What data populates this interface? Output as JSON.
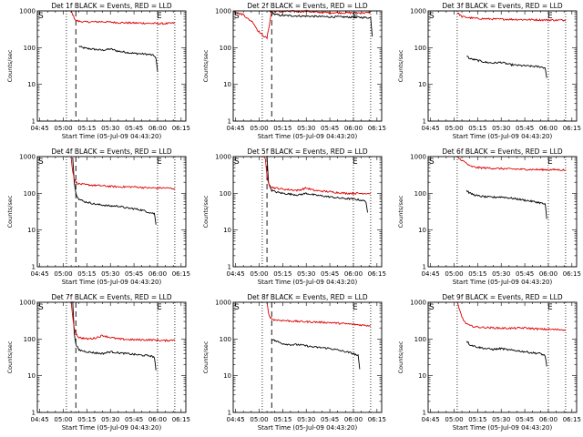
{
  "common": {
    "xlabel": "Start Time (05-Jul-09 04:43:20)",
    "ylabel": "Counts/sec",
    "xticks": [
      "04:45",
      "05:00",
      "05:15",
      "05:30",
      "05:45",
      "06:00",
      "06:15"
    ],
    "yticks": [
      "1",
      "10",
      "100",
      "1000"
    ],
    "marker_s": "S",
    "marker_e": "E",
    "colors": {
      "events": "#000000",
      "lld": "#dd0000"
    }
  },
  "chart_data": [
    {
      "type": "line",
      "title": "Det 1f BLACK = Events, RED = LLD",
      "x_unit": "minutes from 04:45",
      "x_range": [
        -1.5,
        93
      ],
      "y_scale": "log",
      "ylim": [
        1,
        1000
      ],
      "dotted_x": [
        17,
        75,
        86
      ],
      "dashed_x": [
        23
      ],
      "series": [
        {
          "name": "Events",
          "x": [
            25,
            27,
            30,
            35,
            40,
            45,
            50,
            55,
            60,
            65,
            70,
            73,
            74,
            75
          ],
          "y": [
            110,
            100,
            95,
            90,
            85,
            92,
            80,
            75,
            70,
            68,
            65,
            60,
            50,
            22
          ]
        },
        {
          "name": "LLD",
          "x": [
            20,
            21,
            22,
            23,
            25,
            30,
            40,
            50,
            60,
            70,
            80,
            86
          ],
          "y": [
            1000,
            800,
            650,
            550,
            520,
            500,
            510,
            480,
            470,
            460,
            450,
            470
          ]
        }
      ]
    },
    {
      "type": "line",
      "title": "Det 2f BLACK = Events, RED = LLD",
      "x_unit": "minutes from 04:45",
      "x_range": [
        -1.5,
        93
      ],
      "y_scale": "log",
      "ylim": [
        1,
        1000
      ],
      "dotted_x": [
        17,
        75,
        86
      ],
      "dashed_x": [
        23
      ],
      "series": [
        {
          "name": "Events",
          "x": [
            21,
            23,
            25,
            30,
            35,
            40,
            45,
            50,
            55,
            60,
            65,
            70,
            75,
            80,
            86,
            87
          ],
          "y": [
            1000,
            950,
            800,
            750,
            740,
            730,
            720,
            710,
            700,
            690,
            690,
            680,
            680,
            670,
            650,
            200
          ]
        },
        {
          "name": "LLD",
          "x": [
            -1,
            2,
            5,
            8,
            11,
            14,
            17,
            20,
            23,
            28,
            35,
            40,
            45,
            50,
            60,
            70,
            80,
            86
          ],
          "y": [
            1000,
            850,
            800,
            600,
            500,
            300,
            220,
            180,
            1000,
            950,
            980,
            950,
            1000,
            920,
            900,
            890,
            880,
            900
          ]
        }
      ]
    },
    {
      "type": "line",
      "title": "Det 3f BLACK = Events, RED = LLD",
      "x_unit": "minutes from 04:45",
      "x_range": [
        -1.5,
        93
      ],
      "y_scale": "log",
      "ylim": [
        1,
        1000
      ],
      "dotted_x": [
        17,
        75,
        86
      ],
      "dashed_x": [],
      "series": [
        {
          "name": "Events",
          "x": [
            23,
            25,
            30,
            35,
            40,
            45,
            50,
            55,
            60,
            65,
            70,
            73,
            74
          ],
          "y": [
            60,
            50,
            45,
            40,
            38,
            40,
            35,
            33,
            32,
            31,
            30,
            28,
            15
          ]
        },
        {
          "name": "LLD",
          "x": [
            17,
            20,
            25,
            30,
            40,
            50,
            60,
            70,
            80,
            86
          ],
          "y": [
            900,
            700,
            650,
            620,
            600,
            590,
            580,
            570,
            560,
            560
          ]
        }
      ]
    },
    {
      "type": "line",
      "title": "Det 4f BLACK = Events, RED = LLD",
      "x_unit": "minutes from 04:45",
      "x_range": [
        -1.5,
        93
      ],
      "y_scale": "log",
      "ylim": [
        1,
        1000
      ],
      "dotted_x": [
        17,
        75,
        86
      ],
      "dashed_x": [
        23
      ],
      "series": [
        {
          "name": "Events",
          "x": [
            21,
            22,
            23,
            25,
            28,
            32,
            36,
            40,
            45,
            50,
            55,
            60,
            65,
            70,
            73,
            74
          ],
          "y": [
            1000,
            200,
            100,
            70,
            60,
            55,
            50,
            48,
            45,
            45,
            40,
            38,
            35,
            30,
            28,
            14
          ]
        },
        {
          "name": "LLD",
          "x": [
            20,
            21,
            22,
            23,
            25,
            30,
            40,
            50,
            60,
            70,
            80,
            86
          ],
          "y": [
            1000,
            400,
            250,
            200,
            180,
            170,
            160,
            150,
            150,
            140,
            140,
            135
          ]
        }
      ]
    },
    {
      "type": "line",
      "title": "Det 5f BLACK = Events, RED = LLD",
      "x_unit": "minutes from 04:45",
      "x_range": [
        -1.5,
        93
      ],
      "y_scale": "log",
      "ylim": [
        1,
        1000
      ],
      "dotted_x": [
        17,
        75,
        86
      ],
      "dashed_x": [
        20
      ],
      "series": [
        {
          "name": "Events",
          "x": [
            20,
            21,
            23,
            25,
            30,
            35,
            40,
            45,
            50,
            55,
            60,
            65,
            70,
            75,
            80,
            83,
            84
          ],
          "y": [
            1000,
            200,
            120,
            110,
            100,
            95,
            90,
            100,
            90,
            85,
            80,
            75,
            72,
            70,
            65,
            60,
            30
          ]
        },
        {
          "name": "LLD",
          "x": [
            18,
            19,
            20,
            21,
            22,
            25,
            30,
            40,
            45,
            50,
            60,
            70,
            80,
            86
          ],
          "y": [
            1000,
            800,
            300,
            200,
            150,
            140,
            130,
            120,
            140,
            120,
            110,
            100,
            100,
            100
          ]
        }
      ]
    },
    {
      "type": "line",
      "title": "Det 6f BLACK = Events, RED = LLD",
      "x_unit": "minutes from 04:45",
      "x_range": [
        -1.5,
        93
      ],
      "y_scale": "log",
      "ylim": [
        1,
        1000
      ],
      "dotted_x": [
        17,
        75,
        86
      ],
      "dashed_x": [],
      "series": [
        {
          "name": "Events",
          "x": [
            23,
            25,
            30,
            35,
            40,
            45,
            50,
            55,
            60,
            65,
            70,
            73,
            74
          ],
          "y": [
            120,
            100,
            85,
            80,
            78,
            80,
            75,
            70,
            65,
            60,
            55,
            50,
            20
          ]
        },
        {
          "name": "LLD",
          "x": [
            17,
            18,
            20,
            23,
            25,
            30,
            40,
            50,
            60,
            70,
            80,
            86
          ],
          "y": [
            1000,
            900,
            800,
            650,
            550,
            500,
            480,
            460,
            450,
            440,
            440,
            430
          ]
        }
      ]
    },
    {
      "type": "line",
      "title": "Det 7f BLACK = Events, RED = LLD",
      "x_unit": "minutes from 04:45",
      "x_range": [
        -1.5,
        93
      ],
      "y_scale": "log",
      "ylim": [
        1,
        1000
      ],
      "dotted_x": [
        17,
        75,
        86
      ],
      "dashed_x": [
        23
      ],
      "series": [
        {
          "name": "Events",
          "x": [
            21,
            22,
            23,
            25,
            30,
            35,
            40,
            45,
            50,
            55,
            60,
            65,
            70,
            73,
            74
          ],
          "y": [
            1000,
            150,
            70,
            50,
            45,
            42,
            40,
            45,
            42,
            40,
            38,
            36,
            35,
            32,
            14
          ]
        },
        {
          "name": "LLD",
          "x": [
            20,
            21,
            22,
            23,
            25,
            30,
            35,
            40,
            45,
            50,
            60,
            70,
            80,
            86
          ],
          "y": [
            1000,
            400,
            200,
            140,
            110,
            100,
            105,
            125,
            110,
            100,
            95,
            95,
            90,
            95
          ]
        }
      ]
    },
    {
      "type": "line",
      "title": "Det 8f BLACK = Events, RED = LLD",
      "x_unit": "minutes from 04:45",
      "x_range": [
        -1.5,
        93
      ],
      "y_scale": "log",
      "ylim": [
        1,
        1000
      ],
      "dotted_x": [
        17,
        75,
        86
      ],
      "dashed_x": [
        23
      ],
      "series": [
        {
          "name": "Events",
          "x": [
            23,
            25,
            30,
            35,
            40,
            45,
            50,
            55,
            60,
            65,
            70,
            75,
            78,
            79
          ],
          "y": [
            100,
            90,
            75,
            70,
            70,
            65,
            60,
            58,
            55,
            50,
            45,
            40,
            35,
            15
          ]
        },
        {
          "name": "LLD",
          "x": [
            20,
            21,
            22,
            23,
            25,
            30,
            40,
            50,
            60,
            70,
            80,
            86
          ],
          "y": [
            1000,
            500,
            400,
            350,
            330,
            320,
            300,
            290,
            280,
            260,
            240,
            230
          ]
        }
      ]
    },
    {
      "type": "line",
      "title": "Det 9f BLACK = Events, RED = LLD",
      "x_unit": "minutes from 04:45",
      "x_range": [
        -1.5,
        93
      ],
      "y_scale": "log",
      "ylim": [
        1,
        1000
      ],
      "dotted_x": [
        17,
        75,
        86
      ],
      "dashed_x": [],
      "series": [
        {
          "name": "Events",
          "x": [
            23,
            25,
            30,
            35,
            40,
            45,
            50,
            55,
            60,
            65,
            70,
            73,
            74
          ],
          "y": [
            90,
            70,
            60,
            55,
            52,
            55,
            50,
            48,
            45,
            42,
            40,
            35,
            18
          ]
        },
        {
          "name": "LLD",
          "x": [
            17,
            18,
            20,
            22,
            25,
            30,
            40,
            50,
            60,
            70,
            80,
            86
          ],
          "y": [
            1000,
            700,
            400,
            280,
            230,
            210,
            200,
            195,
            200,
            185,
            180,
            180
          ]
        }
      ]
    }
  ]
}
